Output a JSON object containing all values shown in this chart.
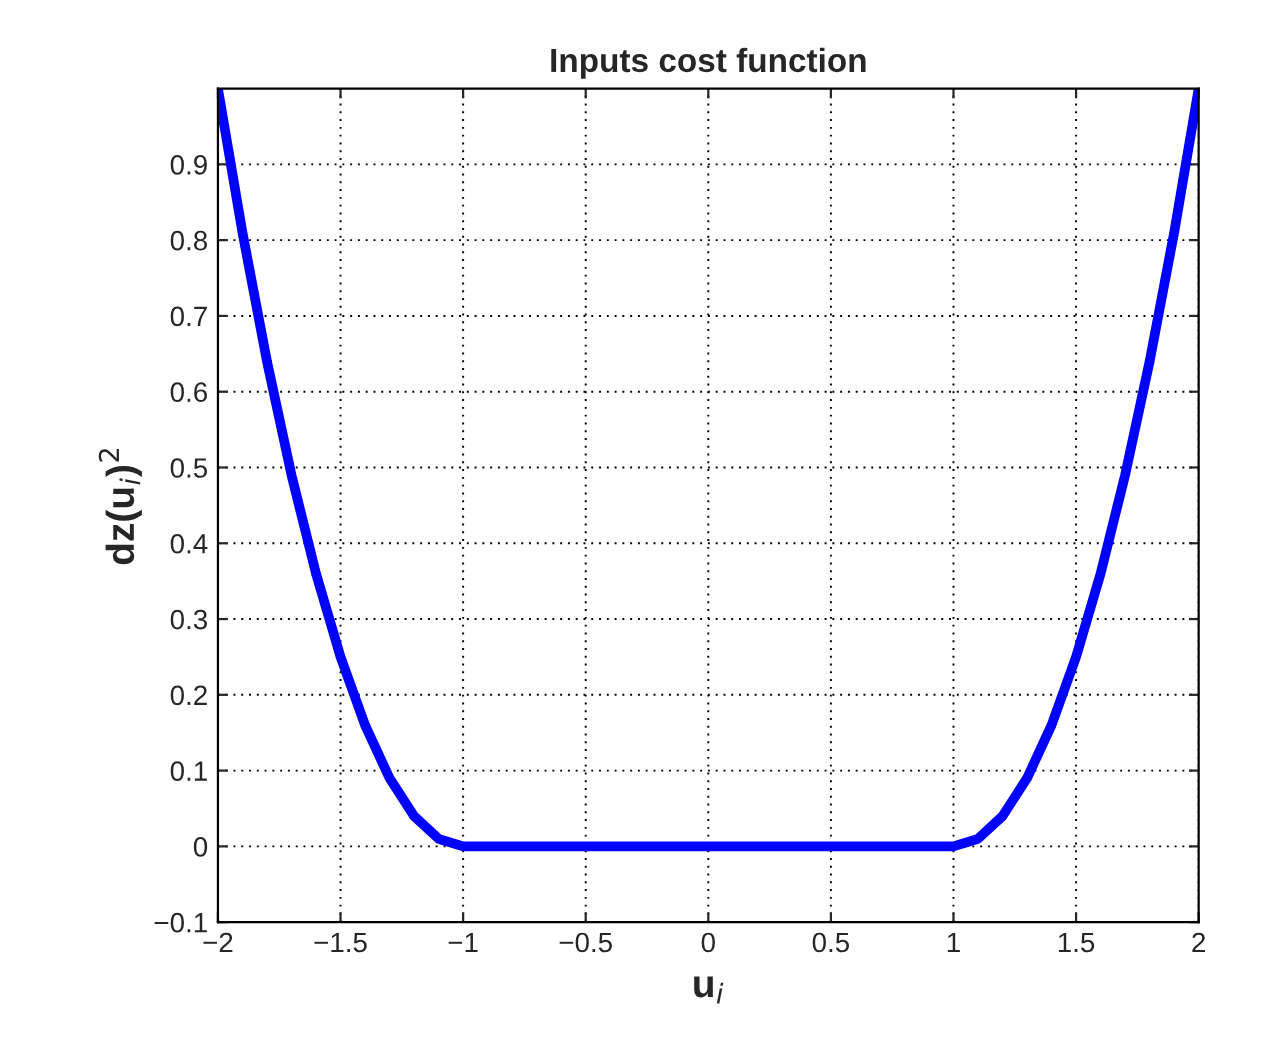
{
  "chart_data": {
    "type": "line",
    "title": "Inputs cost function",
    "xlabel": "u$_{i}$",
    "ylabel": "dz(u$_{i}$)$^{2}$",
    "x": [
      -2,
      -1.9,
      -1.8,
      -1.7,
      -1.6,
      -1.5,
      -1.4,
      -1.3,
      -1.2,
      -1.1,
      -1,
      -0.5,
      0,
      0.5,
      1,
      1.1,
      1.2,
      1.3,
      1.4,
      1.5,
      1.6,
      1.7,
      1.8,
      1.9,
      2
    ],
    "series": [
      {
        "color": "#0000ff",
        "values": [
          1,
          0.81,
          0.64,
          0.49,
          0.36,
          0.25,
          0.16,
          0.09,
          0.04,
          0.01,
          0,
          0,
          0,
          0,
          0,
          0.01,
          0.04,
          0.09,
          0.16,
          0.25,
          0.36,
          0.49,
          0.64,
          0.81,
          1
        ]
      }
    ],
    "xlim": [
      -2,
      2
    ],
    "ylim": [
      -0.1,
      1
    ],
    "xticks": [
      {
        "value": -2,
        "label": "−2"
      },
      {
        "value": -1.5,
        "label": "−1.5"
      },
      {
        "value": -1,
        "label": "−1"
      },
      {
        "value": -0.5,
        "label": "−0.5"
      },
      0,
      0.5,
      1,
      1.5,
      2
    ],
    "yticks": [
      {
        "value": -0.1,
        "label": "−0.1"
      },
      0,
      0.1,
      0.2,
      0.3,
      0.4,
      0.5,
      0.6,
      0.7,
      0.8,
      0.9
    ],
    "grid": true,
    "line_style": "solid",
    "marker": "none"
  }
}
